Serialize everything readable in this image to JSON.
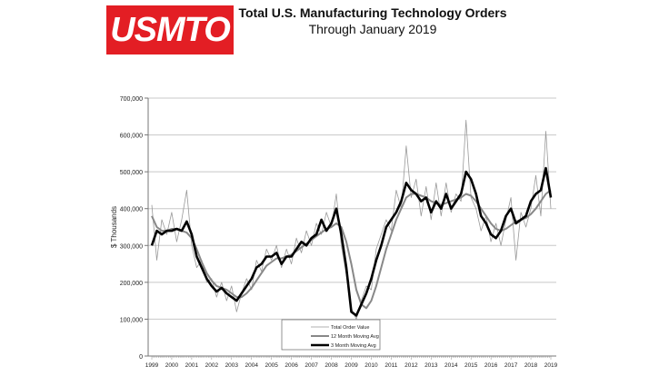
{
  "logo": {
    "text": "USMTO",
    "color": "#e31e24"
  },
  "header": {
    "title": "Total U.S. Manufacturing Technology Orders",
    "subtitle": "Through January 2019"
  },
  "chart_data": {
    "type": "line",
    "title": "Total U.S. Manufacturing Technology Orders",
    "subtitle": "Through January 2019",
    "xlabel": "",
    "ylabel": "$ Thousands",
    "ylim": [
      0,
      700000
    ],
    "xlim": [
      1999,
      2019
    ],
    "yticks": [
      "0",
      "100,000",
      "200,000",
      "300,000",
      "400,000",
      "500,000",
      "600,000",
      "700,000"
    ],
    "xticks": [
      "1999",
      "2000",
      "2001",
      "2002",
      "2003",
      "2004",
      "2005",
      "2006",
      "2007",
      "2008",
      "2009",
      "2010",
      "2011",
      "2012",
      "2013",
      "2014",
      "2015",
      "2016",
      "2017",
      "2018",
      "2019"
    ],
    "grid": "horizontal",
    "legend_placement": "bottom-center",
    "x": [
      1999,
      1999.25,
      1999.5,
      1999.75,
      2000,
      2000.25,
      2000.5,
      2000.75,
      2001,
      2001.25,
      2001.5,
      2001.75,
      2002,
      2002.25,
      2002.5,
      2002.75,
      2003,
      2003.25,
      2003.5,
      2003.75,
      2004,
      2004.25,
      2004.5,
      2004.75,
      2005,
      2005.25,
      2005.5,
      2005.75,
      2006,
      2006.25,
      2006.5,
      2006.75,
      2007,
      2007.25,
      2007.5,
      2007.75,
      2008,
      2008.25,
      2008.5,
      2008.75,
      2009,
      2009.25,
      2009.5,
      2009.75,
      2010,
      2010.25,
      2010.5,
      2010.75,
      2011,
      2011.25,
      2011.5,
      2011.75,
      2012,
      2012.25,
      2012.5,
      2012.75,
      2013,
      2013.25,
      2013.5,
      2013.75,
      2014,
      2014.25,
      2014.5,
      2014.75,
      2015,
      2015.25,
      2015.5,
      2015.75,
      2016,
      2016.25,
      2016.5,
      2016.75,
      2017,
      2017.25,
      2017.5,
      2017.75,
      2018,
      2018.25,
      2018.5,
      2018.75,
      2019
    ],
    "series": [
      {
        "name": "Total Order Value",
        "color": "#999999",
        "values": [
          410000,
          260000,
          370000,
          330000,
          390000,
          310000,
          370000,
          450000,
          300000,
          240000,
          260000,
          200000,
          210000,
          160000,
          200000,
          150000,
          190000,
          120000,
          170000,
          210000,
          180000,
          260000,
          230000,
          290000,
          260000,
          300000,
          240000,
          290000,
          250000,
          320000,
          280000,
          340000,
          300000,
          360000,
          330000,
          390000,
          350000,
          440000,
          300000,
          220000,
          130000,
          100000,
          150000,
          190000,
          180000,
          290000,
          330000,
          370000,
          340000,
          450000,
          400000,
          570000,
          430000,
          480000,
          380000,
          460000,
          370000,
          470000,
          380000,
          470000,
          390000,
          440000,
          420000,
          640000,
          430000,
          400000,
          340000,
          380000,
          310000,
          360000,
          300000,
          370000,
          430000,
          260000,
          390000,
          350000,
          400000,
          490000,
          380000,
          610000,
          400000
        ]
      },
      {
        "name": "12 Month Moving Avg",
        "color": "#888888",
        "values": [
          380000,
          350000,
          340000,
          340000,
          345000,
          345000,
          340000,
          335000,
          320000,
          290000,
          255000,
          225000,
          205000,
          190000,
          185000,
          180000,
          170000,
          160000,
          160000,
          170000,
          185000,
          205000,
          225000,
          245000,
          255000,
          265000,
          265000,
          270000,
          275000,
          285000,
          295000,
          305000,
          315000,
          325000,
          335000,
          345000,
          350000,
          360000,
          350000,
          310000,
          250000,
          180000,
          140000,
          130000,
          150000,
          190000,
          240000,
          290000,
          330000,
          370000,
          400000,
          430000,
          440000,
          440000,
          435000,
          430000,
          420000,
          415000,
          410000,
          415000,
          420000,
          425000,
          430000,
          440000,
          435000,
          420000,
          400000,
          380000,
          360000,
          345000,
          340000,
          345000,
          355000,
          365000,
          370000,
          375000,
          385000,
          400000,
          420000,
          440000,
          450000
        ]
      },
      {
        "name": "3 Month Moving Avg",
        "color": "#000000",
        "values": [
          300000,
          340000,
          330000,
          340000,
          340000,
          345000,
          340000,
          365000,
          330000,
          270000,
          240000,
          210000,
          190000,
          175000,
          185000,
          170000,
          160000,
          150000,
          170000,
          190000,
          210000,
          240000,
          250000,
          270000,
          270000,
          280000,
          250000,
          270000,
          270000,
          290000,
          310000,
          300000,
          320000,
          330000,
          370000,
          340000,
          360000,
          400000,
          330000,
          240000,
          120000,
          110000,
          140000,
          170000,
          210000,
          260000,
          300000,
          350000,
          370000,
          390000,
          420000,
          470000,
          450000,
          440000,
          420000,
          430000,
          390000,
          420000,
          400000,
          440000,
          400000,
          420000,
          440000,
          500000,
          480000,
          440000,
          380000,
          360000,
          330000,
          320000,
          340000,
          380000,
          400000,
          360000,
          370000,
          380000,
          420000,
          440000,
          450000,
          510000,
          430000
        ]
      }
    ]
  }
}
